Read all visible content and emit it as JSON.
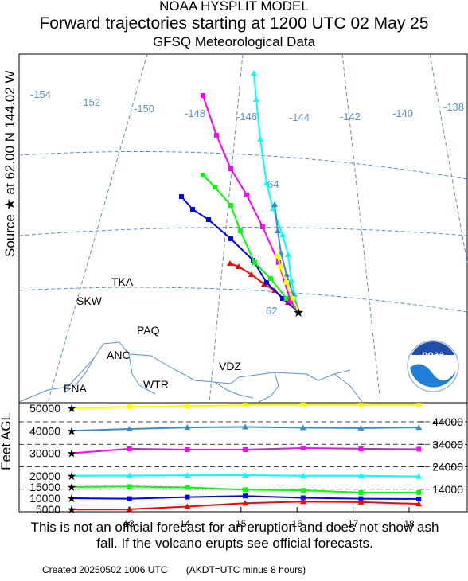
{
  "header": {
    "line1": "NOAA HYSPLIT MODEL",
    "line2": "Forward trajectories starting at 1200 UTC 02 May 25",
    "line3": "GFSQ Meteorological Data"
  },
  "source_label": "Source ★ at  62.00 N  144.02 W",
  "map": {
    "longitude_labels": [
      "-154",
      "-152",
      "-150",
      "-148",
      "-146",
      "-144",
      "-142",
      "-140",
      "-138"
    ],
    "latitude_labels": [
      "64",
      "62"
    ],
    "places": [
      "TKA",
      "SKW",
      "PAQ",
      "ANC",
      "VDZ",
      "WTR",
      "ENA"
    ],
    "logo_text": "noaa"
  },
  "colors": {
    "red": "#ff0000",
    "blue": "#0000ff",
    "green": "#00ff00",
    "magenta": "#ff00ff",
    "cyan": "#00ffff",
    "steelblue": "#3b8bc2",
    "yellow": "#ffff00",
    "graticule": "#5b8fd0",
    "coast": "#5b8fd0"
  },
  "chart_data": {
    "type": "line",
    "title": "Forward trajectories starting at 1200 UTC 02 May 25",
    "ylabel": "Feet AGL",
    "x_ticks": [
      "13",
      "14",
      "15",
      "16",
      "17",
      "18"
    ],
    "left_ticks": [
      "50000",
      "40000",
      "30000",
      "20000",
      "15000",
      "10000",
      "5000"
    ],
    "right_ticks": [
      "44000",
      "34000",
      "24000",
      "14000"
    ],
    "ylim": [
      5000,
      52000
    ],
    "series": [
      {
        "color": "yellow",
        "values": [
          50000,
          50700,
          51000,
          51400,
          51500,
          51400,
          51400
        ]
      },
      {
        "color": "steelblue",
        "values": [
          40000,
          40800,
          41500,
          41700,
          41400,
          41200,
          41500
        ]
      },
      {
        "color": "magenta",
        "values": [
          30000,
          32000,
          31600,
          31600,
          32300,
          32000,
          31800
        ]
      },
      {
        "color": "cyan",
        "values": [
          20000,
          20100,
          20200,
          20300,
          20000,
          20000,
          19700
        ]
      },
      {
        "color": "green",
        "values": [
          15000,
          15200,
          14800,
          13800,
          13500,
          12500,
          12500
        ]
      },
      {
        "color": "blue",
        "values": [
          10000,
          9800,
          10500,
          11000,
          10200,
          9800,
          9700
        ]
      },
      {
        "color": "red",
        "values": [
          5000,
          5100,
          6300,
          7800,
          8500,
          8300,
          7500
        ]
      }
    ]
  },
  "disclaimer": "This is not an official forecast for an eruption and does not show ash fall. If the volcano erupts see official forecasts.",
  "footer": {
    "created": "Created 20250502 1006 UTC",
    "note": "(AKDT=UTC minus 8 hours)"
  }
}
